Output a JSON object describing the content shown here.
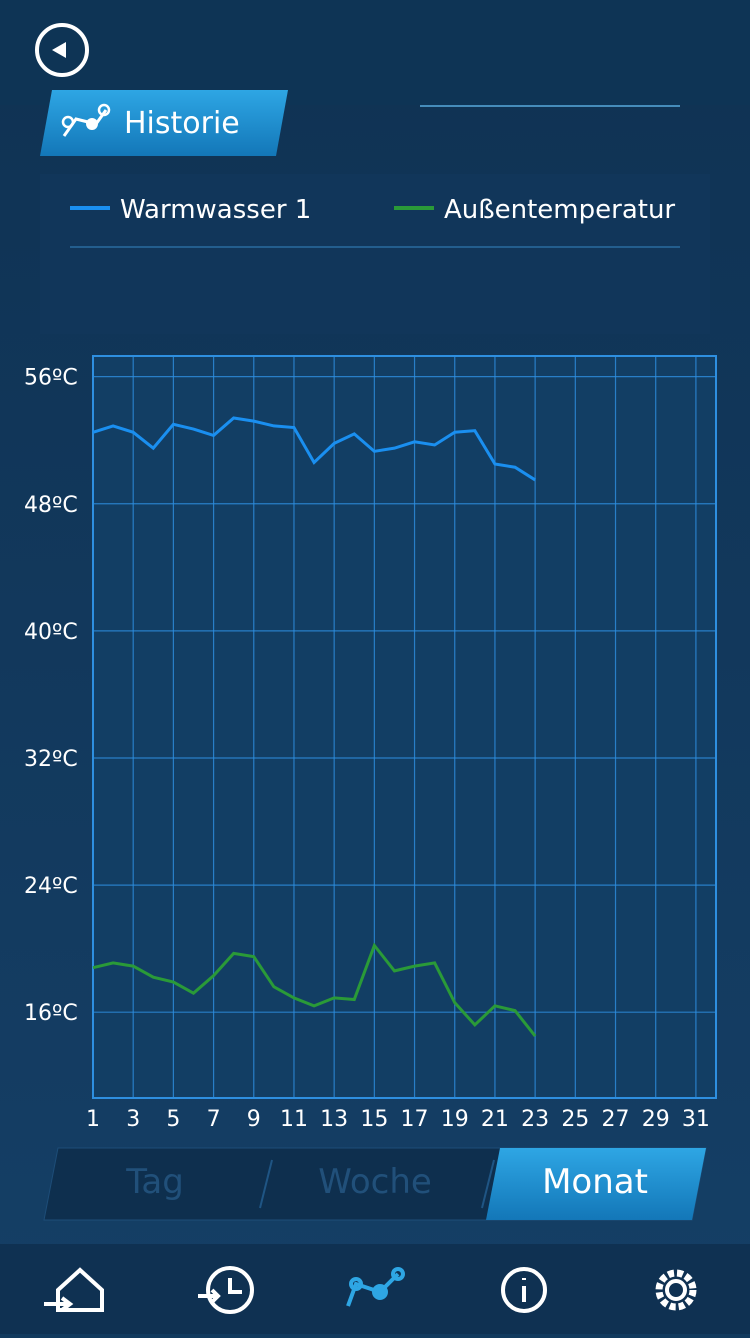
{
  "header": {
    "title": "Historie"
  },
  "chart_data": {
    "type": "line",
    "x": [
      1,
      2,
      3,
      4,
      5,
      6,
      7,
      8,
      9,
      10,
      11,
      12,
      13,
      14,
      15,
      16,
      17,
      18,
      19,
      20,
      21,
      22,
      23
    ],
    "series": [
      {
        "name": "Warmwasser 1",
        "color": "#1a8ff0",
        "values": [
          52.5,
          52.9,
          52.5,
          51.5,
          53.0,
          52.7,
          52.3,
          53.4,
          53.2,
          52.9,
          52.8,
          50.6,
          51.8,
          52.4,
          51.3,
          51.5,
          51.9,
          51.7,
          52.5,
          52.6,
          50.5,
          50.3,
          49.5
        ]
      },
      {
        "name": "Außentemperatur",
        "color": "#2a9a38",
        "values": [
          18.8,
          19.1,
          18.9,
          18.2,
          17.9,
          17.2,
          18.3,
          19.7,
          19.5,
          17.6,
          16.9,
          16.4,
          16.9,
          16.8,
          20.2,
          18.6,
          18.9,
          19.1,
          16.6,
          15.2,
          16.4,
          16.1,
          14.5
        ]
      }
    ],
    "xlim": [
      1,
      32
    ],
    "xticks": [
      1,
      3,
      5,
      7,
      9,
      11,
      13,
      15,
      17,
      19,
      21,
      23,
      25,
      27,
      29,
      31
    ],
    "ylim": [
      10.6,
      57.3
    ],
    "yticks": [
      {
        "value": 16,
        "label": "16ºC"
      },
      {
        "value": 24,
        "label": "24ºC"
      },
      {
        "value": 32,
        "label": "32ºC"
      },
      {
        "value": 40,
        "label": "40ºC"
      },
      {
        "value": 48,
        "label": "48ºC"
      },
      {
        "value": 56,
        "label": "56ºC"
      }
    ],
    "grid": true
  },
  "tabs": [
    "Tag",
    "Woche",
    "Monat"
  ]
}
